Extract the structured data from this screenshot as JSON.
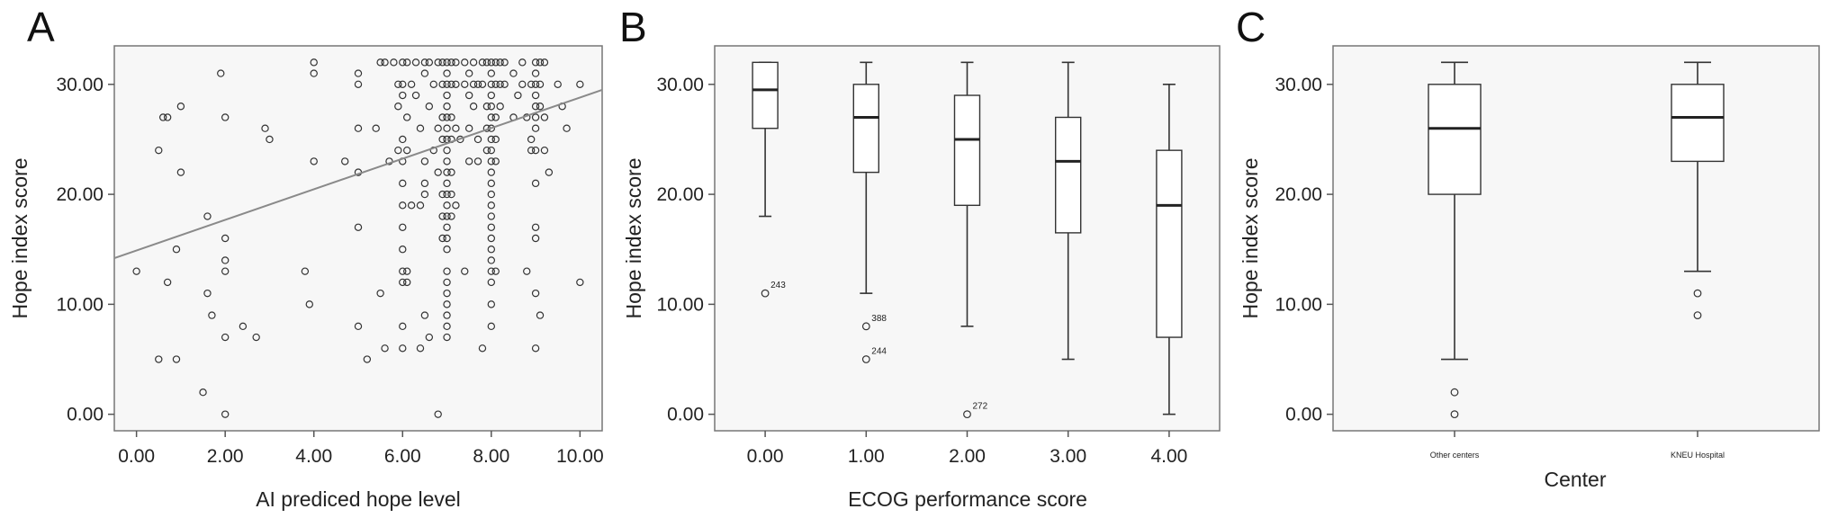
{
  "chart_data": [
    {
      "panel": "A",
      "type": "scatter",
      "xlabel": "AI prediced hope level",
      "ylabel": "Hope index score",
      "xlim": [
        -0.5,
        10.5
      ],
      "ylim": [
        -1.5,
        33.5
      ],
      "xticks": [
        "0.00",
        "2.00",
        "4.00",
        "6.00",
        "8.00",
        "10.00"
      ],
      "yticks": [
        "0.00",
        "10.00",
        "20.00",
        "30.00"
      ],
      "fit_line": {
        "x": [
          -0.5,
          10.5
        ],
        "y": [
          14.2,
          29.5
        ]
      },
      "points": [
        [
          0.0,
          13
        ],
        [
          0.5,
          5
        ],
        [
          0.5,
          24
        ],
        [
          0.6,
          27
        ],
        [
          0.7,
          27
        ],
        [
          0.7,
          12
        ],
        [
          0.9,
          5
        ],
        [
          1.0,
          28
        ],
        [
          1.0,
          22
        ],
        [
          0.9,
          15
        ],
        [
          1.5,
          2
        ],
        [
          1.6,
          11
        ],
        [
          1.7,
          9
        ],
        [
          1.6,
          18
        ],
        [
          1.9,
          31
        ],
        [
          2.0,
          27
        ],
        [
          2.0,
          16
        ],
        [
          2.0,
          14
        ],
        [
          2.0,
          13
        ],
        [
          2.0,
          7
        ],
        [
          2.0,
          0
        ],
        [
          2.4,
          8
        ],
        [
          2.7,
          7
        ],
        [
          2.9,
          26
        ],
        [
          3.0,
          25
        ],
        [
          3.8,
          13
        ],
        [
          3.9,
          10
        ],
        [
          4.0,
          23
        ],
        [
          4.0,
          31
        ],
        [
          4.0,
          32
        ],
        [
          4.7,
          23
        ],
        [
          5.0,
          31
        ],
        [
          5.0,
          30
        ],
        [
          5.0,
          26
        ],
        [
          5.0,
          22
        ],
        [
          5.0,
          17
        ],
        [
          5.0,
          8
        ],
        [
          5.2,
          5
        ],
        [
          5.4,
          26
        ],
        [
          5.5,
          32
        ],
        [
          5.5,
          11
        ],
        [
          5.6,
          32
        ],
        [
          5.6,
          6
        ],
        [
          5.7,
          23
        ],
        [
          5.8,
          32
        ],
        [
          5.9,
          30
        ],
        [
          5.9,
          28
        ],
        [
          5.9,
          24
        ],
        [
          6.0,
          32
        ],
        [
          6.0,
          30
        ],
        [
          6.0,
          29
        ],
        [
          6.0,
          25
        ],
        [
          6.0,
          23
        ],
        [
          6.0,
          21
        ],
        [
          6.0,
          19
        ],
        [
          6.0,
          17
        ],
        [
          6.0,
          15
        ],
        [
          6.0,
          13
        ],
        [
          6.0,
          12
        ],
        [
          6.0,
          8
        ],
        [
          6.0,
          6
        ],
        [
          6.1,
          32
        ],
        [
          6.1,
          27
        ],
        [
          6.1,
          24
        ],
        [
          6.1,
          13
        ],
        [
          6.1,
          12
        ],
        [
          6.2,
          19
        ],
        [
          6.2,
          30
        ],
        [
          6.3,
          32
        ],
        [
          6.3,
          29
        ],
        [
          6.4,
          26
        ],
        [
          6.4,
          19
        ],
        [
          6.4,
          6
        ],
        [
          6.5,
          32
        ],
        [
          6.5,
          31
        ],
        [
          6.5,
          23
        ],
        [
          6.5,
          21
        ],
        [
          6.5,
          20
        ],
        [
          6.5,
          9
        ],
        [
          6.6,
          32
        ],
        [
          6.6,
          28
        ],
        [
          6.6,
          7
        ],
        [
          6.7,
          30
        ],
        [
          6.7,
          24
        ],
        [
          6.8,
          32
        ],
        [
          6.8,
          26
        ],
        [
          6.8,
          22
        ],
        [
          6.8,
          0
        ],
        [
          6.9,
          32
        ],
        [
          6.9,
          30
        ],
        [
          6.9,
          27
        ],
        [
          6.9,
          25
        ],
        [
          6.9,
          20
        ],
        [
          6.9,
          18
        ],
        [
          6.9,
          16
        ],
        [
          7.0,
          32
        ],
        [
          7.0,
          31
        ],
        [
          7.0,
          30
        ],
        [
          7.0,
          29
        ],
        [
          7.0,
          28
        ],
        [
          7.0,
          27
        ],
        [
          7.0,
          26
        ],
        [
          7.0,
          25
        ],
        [
          7.0,
          24
        ],
        [
          7.0,
          23
        ],
        [
          7.0,
          22
        ],
        [
          7.0,
          21
        ],
        [
          7.0,
          20
        ],
        [
          7.0,
          19
        ],
        [
          7.0,
          18
        ],
        [
          7.0,
          17
        ],
        [
          7.0,
          16
        ],
        [
          7.0,
          15
        ],
        [
          7.0,
          13
        ],
        [
          7.0,
          12
        ],
        [
          7.0,
          11
        ],
        [
          7.0,
          10
        ],
        [
          7.0,
          9
        ],
        [
          7.0,
          8
        ],
        [
          7.0,
          7
        ],
        [
          7.1,
          32
        ],
        [
          7.1,
          30
        ],
        [
          7.1,
          27
        ],
        [
          7.1,
          25
        ],
        [
          7.1,
          22
        ],
        [
          7.1,
          20
        ],
        [
          7.1,
          18
        ],
        [
          7.2,
          32
        ],
        [
          7.2,
          30
        ],
        [
          7.2,
          26
        ],
        [
          7.2,
          19
        ],
        [
          7.3,
          25
        ],
        [
          7.4,
          32
        ],
        [
          7.4,
          30
        ],
        [
          7.4,
          13
        ],
        [
          7.5,
          31
        ],
        [
          7.5,
          29
        ],
        [
          7.5,
          23
        ],
        [
          7.5,
          26
        ],
        [
          7.6,
          32
        ],
        [
          7.6,
          30
        ],
        [
          7.6,
          28
        ],
        [
          7.7,
          30
        ],
        [
          7.7,
          25
        ],
        [
          7.7,
          23
        ],
        [
          7.8,
          32
        ],
        [
          7.8,
          30
        ],
        [
          7.8,
          6
        ],
        [
          7.9,
          32
        ],
        [
          7.9,
          28
        ],
        [
          7.9,
          26
        ],
        [
          7.9,
          24
        ],
        [
          8.0,
          32
        ],
        [
          8.0,
          31
        ],
        [
          8.0,
          30
        ],
        [
          8.0,
          29
        ],
        [
          8.0,
          28
        ],
        [
          8.0,
          27
        ],
        [
          8.0,
          26
        ],
        [
          8.0,
          25
        ],
        [
          8.0,
          24
        ],
        [
          8.0,
          23
        ],
        [
          8.0,
          22
        ],
        [
          8.0,
          21
        ],
        [
          8.0,
          20
        ],
        [
          8.0,
          19
        ],
        [
          8.0,
          18
        ],
        [
          8.0,
          17
        ],
        [
          8.0,
          16
        ],
        [
          8.0,
          15
        ],
        [
          8.0,
          14
        ],
        [
          8.0,
          13
        ],
        [
          8.0,
          12
        ],
        [
          8.0,
          10
        ],
        [
          8.0,
          8
        ],
        [
          8.1,
          32
        ],
        [
          8.1,
          30
        ],
        [
          8.1,
          27
        ],
        [
          8.1,
          25
        ],
        [
          8.1,
          23
        ],
        [
          8.1,
          13
        ],
        [
          8.2,
          32
        ],
        [
          8.2,
          30
        ],
        [
          8.2,
          28
        ],
        [
          8.3,
          32
        ],
        [
          8.3,
          30
        ],
        [
          8.5,
          31
        ],
        [
          8.5,
          27
        ],
        [
          8.6,
          29
        ],
        [
          8.7,
          32
        ],
        [
          8.7,
          30
        ],
        [
          8.8,
          27
        ],
        [
          8.8,
          13
        ],
        [
          8.9,
          30
        ],
        [
          8.9,
          25
        ],
        [
          8.9,
          24
        ],
        [
          9.0,
          32
        ],
        [
          9.0,
          31
        ],
        [
          9.0,
          30
        ],
        [
          9.0,
          29
        ],
        [
          9.0,
          28
        ],
        [
          9.0,
          27
        ],
        [
          9.0,
          26
        ],
        [
          9.0,
          24
        ],
        [
          9.0,
          21
        ],
        [
          9.0,
          17
        ],
        [
          9.0,
          16
        ],
        [
          9.0,
          11
        ],
        [
          9.0,
          6
        ],
        [
          9.1,
          32
        ],
        [
          9.1,
          30
        ],
        [
          9.1,
          28
        ],
        [
          9.1,
          9
        ],
        [
          9.2,
          32
        ],
        [
          9.2,
          27
        ],
        [
          9.2,
          24
        ],
        [
          9.3,
          22
        ],
        [
          9.5,
          30
        ],
        [
          9.6,
          28
        ],
        [
          9.7,
          26
        ],
        [
          10.0,
          30
        ],
        [
          10.0,
          12
        ]
      ]
    },
    {
      "panel": "B",
      "type": "box",
      "xlabel": "ECOG performance score",
      "ylabel": "Hope index score",
      "ylim": [
        -1.5,
        33.5
      ],
      "yticks": [
        "0.00",
        "10.00",
        "20.00",
        "30.00"
      ],
      "categories": [
        "0.00",
        "1.00",
        "2.00",
        "3.00",
        "4.00"
      ],
      "boxes": [
        {
          "min": 18,
          "q1": 26,
          "median": 29.5,
          "q3": 32,
          "max": 32
        },
        {
          "min": 11,
          "q1": 22,
          "median": 27,
          "q3": 30,
          "max": 32
        },
        {
          "min": 8,
          "q1": 19,
          "median": 25,
          "q3": 29,
          "max": 32
        },
        {
          "min": 5,
          "q1": 16.5,
          "median": 23,
          "q3": 27,
          "max": 32
        },
        {
          "min": 0,
          "q1": 7,
          "median": 19,
          "q3": 24,
          "max": 30
        }
      ],
      "outliers": [
        {
          "category": 0,
          "value": 11,
          "label": "243"
        },
        {
          "category": 1,
          "value": 8,
          "label": "388"
        },
        {
          "category": 1,
          "value": 5,
          "label": "244"
        },
        {
          "category": 2,
          "value": 0,
          "label": "272"
        }
      ]
    },
    {
      "panel": "C",
      "type": "box",
      "xlabel": "Center",
      "ylabel": "Hope index score",
      "ylim": [
        -1.5,
        33.5
      ],
      "yticks": [
        "0.00",
        "10.00",
        "20.00",
        "30.00"
      ],
      "categories": [
        "Other centers",
        "KNEU Hospital"
      ],
      "boxes": [
        {
          "min": 5,
          "q1": 20,
          "median": 26,
          "q3": 30,
          "max": 32
        },
        {
          "min": 13,
          "q1": 23,
          "median": 27,
          "q3": 30,
          "max": 32
        }
      ],
      "outliers": [
        {
          "category": 0,
          "value": 2,
          "label": ""
        },
        {
          "category": 0,
          "value": 0,
          "label": ""
        },
        {
          "category": 1,
          "value": 11,
          "label": ""
        },
        {
          "category": 1,
          "value": 9,
          "label": ""
        }
      ]
    }
  ]
}
